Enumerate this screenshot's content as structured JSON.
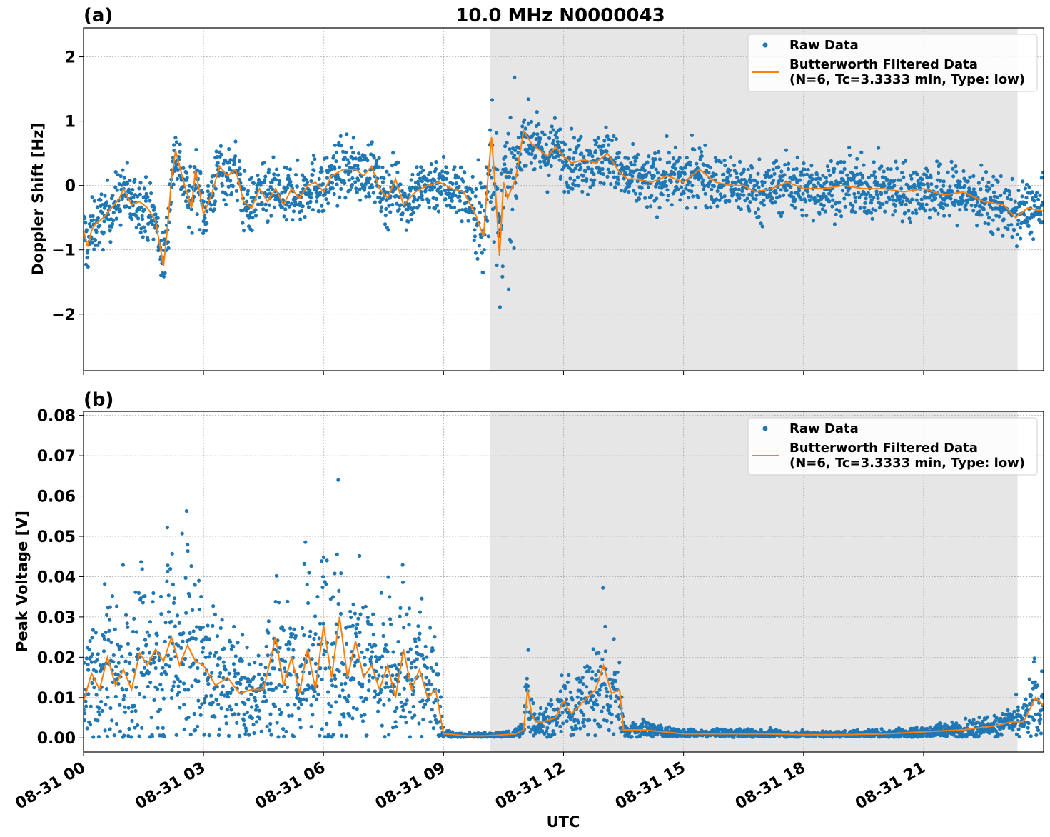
{
  "title": "10.0 MHz N0000043",
  "xlabel": "UTC",
  "colors": {
    "raw": "#1f77b4",
    "filtered": "#ff7f0e",
    "shade": "#e6e6e6",
    "grid": "#b0b0b0"
  },
  "x_ticks": [
    "08-31 00",
    "08-31 03",
    "08-31 06",
    "08-31 09",
    "08-31 12",
    "08-31 15",
    "08-31 18",
    "08-31 21"
  ],
  "chart_data": [
    {
      "type": "scatter",
      "panel_label": "(a)",
      "ylabel": "Doppler Shift [Hz]",
      "xlim_hours": [
        0,
        24.0
      ],
      "ylim": [
        -2.88,
        2.45
      ],
      "y_ticks": [
        2,
        1,
        0,
        -1,
        -2
      ],
      "y_tick_labels": [
        "2",
        "1",
        "0",
        "−1",
        "−2"
      ],
      "shaded_span_hours": [
        10.17,
        23.35
      ],
      "grid": true,
      "legend": {
        "position": "top-right",
        "entries": [
          "Raw Data",
          "Butterworth Filtered Data",
          "(N=6, Tc=3.3333 min, Type: low)"
        ]
      },
      "series": [
        {
          "name": "Butterworth Filtered Data",
          "x_hours": [
            0,
            0.1,
            0.2,
            0.3,
            0.5,
            0.7,
            0.9,
            1.0,
            1.2,
            1.4,
            1.6,
            1.8,
            2.0,
            2.1,
            2.2,
            2.3,
            2.4,
            2.55,
            2.7,
            2.8,
            3.0,
            3.2,
            3.4,
            3.6,
            3.8,
            4.0,
            4.2,
            4.4,
            4.6,
            4.8,
            5.0,
            5.2,
            5.4,
            5.6,
            5.8,
            6.0,
            6.2,
            6.5,
            6.8,
            7.0,
            7.2,
            7.4,
            7.6,
            7.8,
            8.0,
            8.3,
            8.6,
            8.9,
            9.2,
            9.5,
            9.8,
            10.0,
            10.1,
            10.2,
            10.3,
            10.4,
            10.5,
            10.6,
            10.8,
            11.0,
            11.2,
            11.4,
            11.6,
            11.8,
            12.0,
            12.2,
            12.5,
            12.8,
            13.1,
            13.4,
            13.6,
            13.8,
            14.2,
            14.6,
            15.0,
            15.4,
            15.8,
            16.2,
            16.5,
            16.8,
            17.2,
            17.6,
            18.0,
            18.5,
            19.0,
            19.5,
            20.0,
            20.5,
            21.0,
            21.5,
            22.0,
            22.5,
            23.0,
            23.3,
            23.6,
            24.0
          ],
          "y": [
            -0.7,
            -0.95,
            -0.7,
            -0.6,
            -0.5,
            -0.35,
            -0.2,
            -0.05,
            -0.3,
            -0.25,
            -0.35,
            -0.55,
            -1.25,
            -0.65,
            0.1,
            0.55,
            0.3,
            -0.05,
            -0.35,
            0.25,
            -0.45,
            -0.15,
            0.3,
            0.15,
            0.25,
            -0.25,
            -0.35,
            -0.05,
            -0.25,
            -0.05,
            -0.3,
            -0.05,
            -0.2,
            0.0,
            0.05,
            -0.1,
            0.15,
            0.25,
            0.25,
            0.15,
            0.3,
            -0.05,
            -0.2,
            0.1,
            -0.3,
            -0.1,
            0.0,
            0.05,
            -0.05,
            -0.1,
            -0.45,
            -0.8,
            0.05,
            0.75,
            -0.1,
            -1.1,
            0.05,
            -0.2,
            0.1,
            0.85,
            0.65,
            0.55,
            0.45,
            0.6,
            0.45,
            0.35,
            0.4,
            0.35,
            0.5,
            0.2,
            0.1,
            0.1,
            0.05,
            0.15,
            0.05,
            0.25,
            0.05,
            0.0,
            0.0,
            -0.1,
            -0.05,
            0.05,
            -0.05,
            -0.05,
            0.0,
            -0.05,
            -0.05,
            -0.1,
            -0.05,
            -0.15,
            -0.1,
            -0.25,
            -0.3,
            -0.5,
            -0.35,
            -0.4
          ]
        }
      ]
    },
    {
      "type": "scatter",
      "panel_label": "(b)",
      "ylabel": "Peak Voltage [V]",
      "xlim_hours": [
        0,
        24.0
      ],
      "ylim": [
        -0.0035,
        0.081
      ],
      "y_ticks": [
        0.08,
        0.07,
        0.06,
        0.05,
        0.04,
        0.03,
        0.02,
        0.01,
        0.0
      ],
      "y_tick_labels": [
        "0.08",
        "0.07",
        "0.06",
        "0.05",
        "0.04",
        "0.03",
        "0.02",
        "0.01",
        "0.00"
      ],
      "shaded_span_hours": [
        10.17,
        23.35
      ],
      "grid": true,
      "legend": {
        "position": "top-right",
        "entries": [
          "Raw Data",
          "Butterworth Filtered Data",
          "(N=6, Tc=3.3333 min, Type: low)"
        ]
      },
      "series": [
        {
          "name": "Butterworth Filtered Data",
          "x_hours": [
            0,
            0.2,
            0.4,
            0.6,
            0.8,
            1.0,
            1.2,
            1.4,
            1.6,
            1.8,
            2.0,
            2.2,
            2.4,
            2.6,
            2.8,
            3.0,
            3.3,
            3.6,
            3.9,
            4.2,
            4.5,
            4.8,
            5.0,
            5.2,
            5.4,
            5.6,
            5.8,
            6.0,
            6.2,
            6.4,
            6.6,
            6.8,
            7.0,
            7.2,
            7.4,
            7.6,
            7.8,
            8.0,
            8.2,
            8.4,
            8.6,
            8.8,
            9.0,
            9.3,
            9.6,
            10.0,
            10.4,
            10.8,
            11.0,
            11.1,
            11.2,
            11.3,
            11.5,
            11.8,
            12.0,
            12.2,
            12.4,
            12.6,
            12.8,
            13.0,
            13.2,
            13.4,
            13.5,
            13.6,
            14.0,
            14.5,
            15.0,
            16.0,
            17.0,
            18.0,
            19.0,
            20.0,
            21.0,
            22.0,
            22.8,
            23.2,
            23.5,
            23.8,
            24.0
          ],
          "y": [
            0.009,
            0.016,
            0.012,
            0.02,
            0.013,
            0.017,
            0.012,
            0.021,
            0.018,
            0.022,
            0.019,
            0.025,
            0.018,
            0.023,
            0.019,
            0.018,
            0.013,
            0.015,
            0.011,
            0.012,
            0.012,
            0.025,
            0.013,
            0.02,
            0.011,
            0.022,
            0.012,
            0.028,
            0.015,
            0.03,
            0.015,
            0.024,
            0.015,
            0.018,
            0.012,
            0.018,
            0.01,
            0.022,
            0.012,
            0.017,
            0.01,
            0.012,
            0.001,
            0.0008,
            0.0005,
            0.0005,
            0.0007,
            0.001,
            0.002,
            0.012,
            0.006,
            0.004,
            0.004,
            0.005,
            0.009,
            0.006,
            0.008,
            0.01,
            0.012,
            0.018,
            0.011,
            0.012,
            0.002,
            0.002,
            0.002,
            0.0015,
            0.001,
            0.001,
            0.001,
            0.0008,
            0.0008,
            0.001,
            0.0015,
            0.002,
            0.003,
            0.004,
            0.004,
            0.01,
            0.008
          ]
        }
      ]
    }
  ]
}
